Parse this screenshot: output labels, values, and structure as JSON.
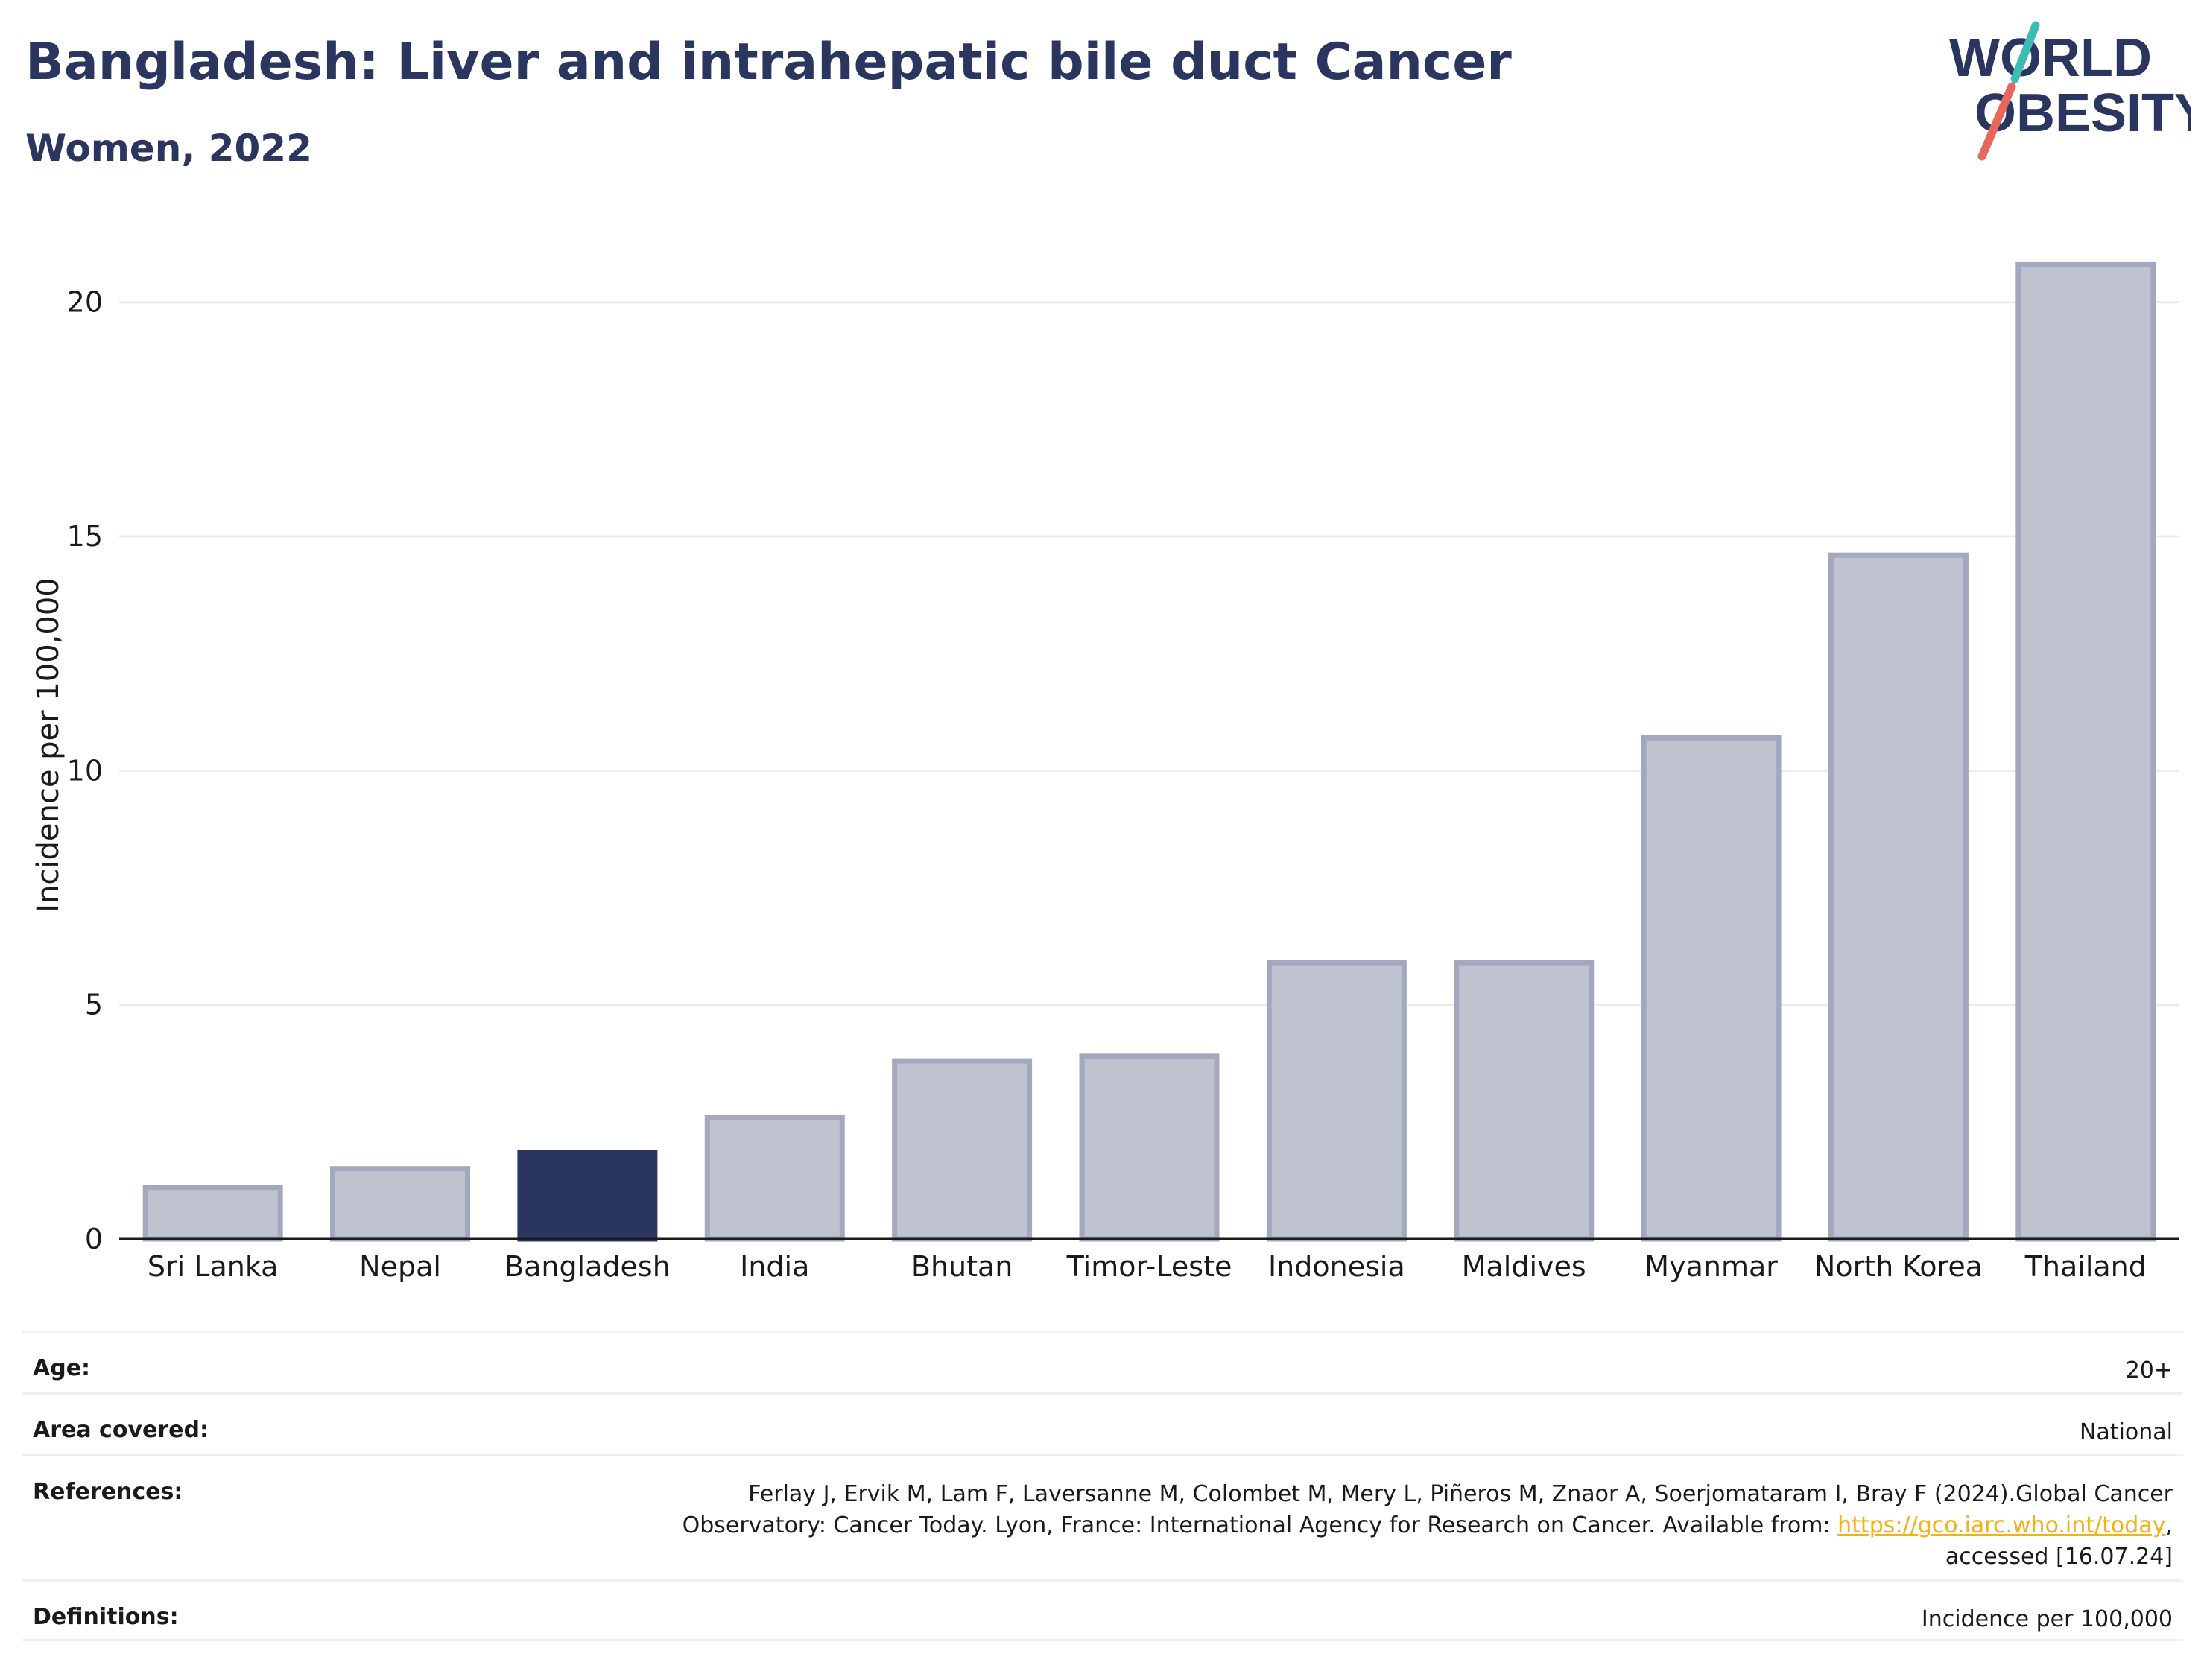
{
  "header": {
    "title": "Bangladesh: Liver and intrahepatic bile duct Cancer",
    "subtitle": "Women, 2022"
  },
  "logo": {
    "line1": "WORLD",
    "line2": "OBESITY",
    "text_color": "#2a3560",
    "slash_colors": [
      "#3dbcb6",
      "#e8665a"
    ]
  },
  "chart_data": {
    "type": "bar",
    "title": "Bangladesh: Liver and intrahepatic bile duct Cancer",
    "subtitle": "Women, 2022",
    "categories": [
      "Sri Lanka",
      "Nepal",
      "Bangladesh",
      "India",
      "Bhutan",
      "Timor-Leste",
      "Indonesia",
      "Maldives",
      "Myanmar",
      "North Korea",
      "Thailand"
    ],
    "values": [
      1.1,
      1.5,
      1.85,
      2.6,
      3.8,
      3.9,
      5.9,
      5.9,
      10.7,
      14.6,
      20.8
    ],
    "highlight": "Bangladesh",
    "xlabel": "",
    "ylabel": "Incidence per 100,000",
    "ylim": [
      0,
      22
    ],
    "yticks": [
      0,
      5,
      10,
      15,
      20
    ],
    "grid": true,
    "colors": {
      "highlight": "#2a3560",
      "bar_fill": "#bfc3d0",
      "bar_stroke": "#a2a8bd",
      "grid": "#e9ebf0",
      "axis": "#1a1a1a"
    }
  },
  "meta": {
    "rows": [
      {
        "label": "Age:",
        "value": "20+"
      },
      {
        "label": "Area covered:",
        "value": "National"
      },
      {
        "label": "References:",
        "value_lines": [
          "Ferlay J, Ervik M, Lam F, Laversanne M, Colombet M, Mery L, Piñeros M, Znaor A, Soerjomataram I, Bray F (2024).Global Cancer",
          "Observatory: Cancer Today. Lyon, France: International Agency for Research on Cancer. Available from: ",
          "accessed [16.07.24]"
        ],
        "link": "https://gco.iarc.who.int/today",
        "link_suffix": ","
      },
      {
        "label": "Definitions:",
        "value": "Incidence per 100,000"
      }
    ]
  }
}
